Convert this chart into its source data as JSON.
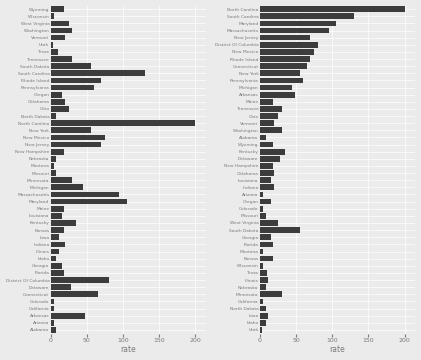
{
  "states_alpha_bottom_to_top": [
    "Alabama",
    "Arizona",
    "Arkansas",
    "California",
    "Colorado",
    "Connecticut",
    "Delaware",
    "District Of Columbia",
    "Florida",
    "Georgia",
    "Idaho",
    "Illinois",
    "Indiana",
    "Iowa",
    "Kansas",
    "Kentucky",
    "Louisiana",
    "Maine",
    "Maryland",
    "Massachusetts",
    "Michigan",
    "Minnesota",
    "Missouri",
    "Montana",
    "Nebraska",
    "New Hampshire",
    "New Jersey",
    "New Mexico",
    "New York",
    "North Carolina",
    "North Dakota",
    "Ohio",
    "Oklahoma",
    "Oregon",
    "Pennsylvania",
    "Rhode Island",
    "South Carolina",
    "South Dakota",
    "Tennessee",
    "Texas",
    "Utah",
    "Vermont",
    "Washington",
    "West Virginia",
    "Wisconsin",
    "Wyoming"
  ],
  "rates_alpha": [
    8,
    5,
    48,
    5,
    5,
    65,
    28,
    80,
    18,
    15,
    8,
    12,
    20,
    12,
    18,
    35,
    15,
    18,
    105,
    95,
    45,
    30,
    8,
    5,
    8,
    18,
    70,
    75,
    55,
    200,
    8,
    25,
    20,
    15,
    60,
    70,
    130,
    55,
    30,
    10,
    3,
    20,
    30,
    25,
    5,
    18
  ],
  "states_sorted_bottom_to_top": [
    "Utah",
    "Idaho",
    "Iowa",
    "North Dakota",
    "California",
    "Minnesota",
    "Nebraska",
    "Illinois",
    "Texas",
    "Wisconsin",
    "Kansas",
    "Montana",
    "Florida",
    "Georgia",
    "South Dakota",
    "West Virginia",
    "Missouri",
    "Colorado",
    "Oregon",
    "Arizona",
    "Indiana",
    "Louisiana",
    "Oklahoma",
    "New Hampshire",
    "Delaware",
    "Kentucky",
    "Wyoming",
    "Alabama",
    "Washington",
    "Vermont",
    "Ohio",
    "Tennessee",
    "Maine",
    "Arkansas",
    "Michigan",
    "Pennsylvania",
    "New York",
    "Connecticut",
    "Rhode Island",
    "New Mexico",
    "District Of Columbia",
    "New Jersey",
    "Massachusetts",
    "Maryland",
    "South Carolina",
    "North Carolina"
  ],
  "rates_sorted": [
    3,
    8,
    12,
    8,
    5,
    30,
    8,
    12,
    10,
    5,
    18,
    5,
    18,
    15,
    55,
    25,
    8,
    5,
    15,
    5,
    20,
    15,
    20,
    18,
    28,
    35,
    18,
    8,
    30,
    20,
    25,
    30,
    18,
    48,
    45,
    60,
    55,
    65,
    70,
    75,
    80,
    70,
    95,
    105,
    130,
    200
  ],
  "bar_color": "#3c3c3c",
  "background_color": "#ebebeb",
  "grid_color": "#ffffff",
  "text_color": "#7a7a7a",
  "xlabel": "rate",
  "xlim": [
    0,
    215
  ],
  "xticks": [
    0,
    50,
    100,
    150,
    200
  ]
}
